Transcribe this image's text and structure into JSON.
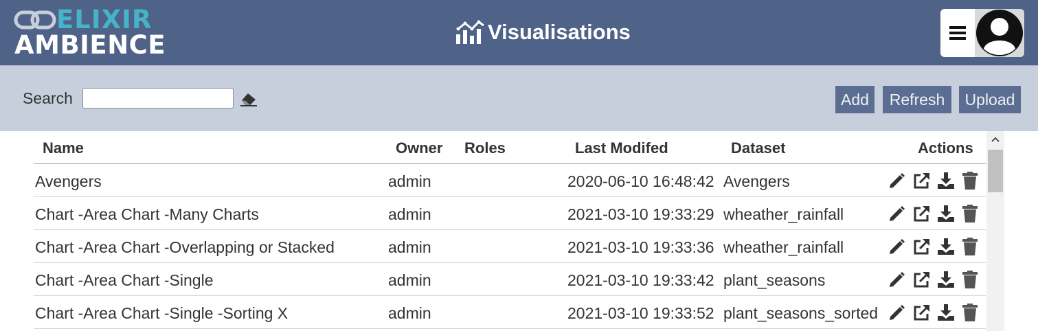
{
  "app": {
    "logo_line1": "ELIXIR",
    "logo_line2": "AMBIENCE",
    "page_title": "Visualisations"
  },
  "toolbar": {
    "search_label": "Search",
    "search_value": "",
    "add_label": "Add",
    "refresh_label": "Refresh",
    "upload_label": "Upload"
  },
  "table": {
    "headers": {
      "name": "Name",
      "owner": "Owner",
      "roles": "Roles",
      "modified": "Last Modifed",
      "dataset": "Dataset",
      "actions": "Actions"
    },
    "rows": [
      {
        "name": "Avengers",
        "owner": "admin",
        "roles": "",
        "modified": "2020-06-10 16:48:42",
        "dataset": "Avengers"
      },
      {
        "name": "Chart -Area Chart -Many Charts",
        "owner": "admin",
        "roles": "",
        "modified": "2021-03-10 19:33:29",
        "dataset": "wheather_rainfall"
      },
      {
        "name": "Chart -Area Chart -Overlapping or Stacked",
        "owner": "admin",
        "roles": "",
        "modified": "2021-03-10 19:33:36",
        "dataset": "wheather_rainfall"
      },
      {
        "name": "Chart -Area Chart -Single",
        "owner": "admin",
        "roles": "",
        "modified": "2021-03-10 19:33:42",
        "dataset": "plant_seasons"
      },
      {
        "name": "Chart -Area Chart -Single -Sorting X",
        "owner": "admin",
        "roles": "",
        "modified": "2021-03-10 19:33:52",
        "dataset": "plant_seasons_sorted"
      }
    ]
  },
  "icons": {
    "logo": "chain-link-icon",
    "title": "bar-chart-icon",
    "menu": "hamburger-icon",
    "avatar": "user-avatar-icon",
    "clear_search": "eraser-icon",
    "row_actions": [
      "pencil-icon",
      "external-link-icon",
      "download-icon",
      "trash-icon"
    ]
  },
  "colors": {
    "header_bg": "#4f6287",
    "toolbar_bg": "#c7cfdd",
    "logo_accent": "#45b4c9",
    "button_bg": "#5b6e91"
  }
}
